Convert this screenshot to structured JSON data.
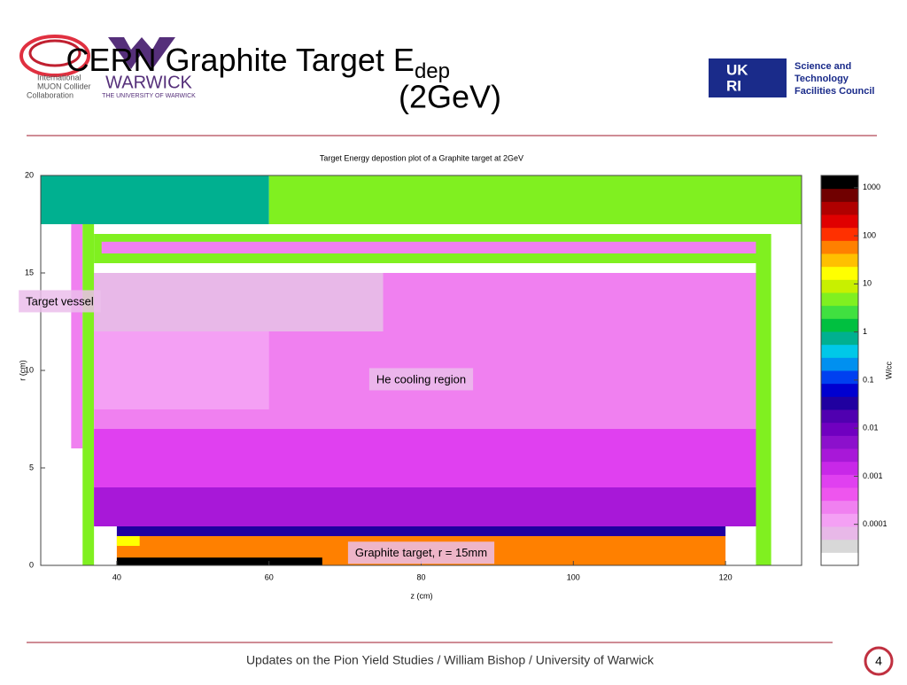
{
  "header": {
    "title_main": "CERN Graphite Target E",
    "title_sub": "dep",
    "title_line2": "(2GeV)",
    "logo_left": [
      "International",
      "MUON Collider",
      "Collaboration"
    ],
    "logo_warwick": "WARWICK",
    "logo_warwick_sub": "THE UNIVERSITY OF WARWICK",
    "logo_ukri": [
      "UK",
      "RI"
    ],
    "logo_stfc": [
      "Science and",
      "Technology",
      "Facilities Council"
    ]
  },
  "footer": {
    "text": "Updates on the Pion Yield Studies / William Bishop / University of Warwick",
    "page": "4"
  },
  "chart_data": {
    "type": "heatmap",
    "title": "Target Energy depostion plot of a Graphite target at 2GeV",
    "xlabel": "z (cm)",
    "ylabel": "r (cm)",
    "xlim": [
      30,
      130
    ],
    "ylim": [
      0,
      20
    ],
    "xticks": [
      40,
      60,
      80,
      100,
      120
    ],
    "yticks": [
      0,
      5,
      10,
      15,
      20
    ],
    "colorbar": {
      "label": "W/cc",
      "log": true,
      "clim": [
        1.4e-05,
        1800
      ],
      "ticks": [
        0.0001,
        0.001,
        0.01,
        0.1,
        1,
        10,
        100,
        1000
      ],
      "colors": [
        "#ffffff",
        "#d8d8d8",
        "#e8b8e8",
        "#f4a0f4",
        "#f080f0",
        "#ee55ee",
        "#e040f0",
        "#c828e8",
        "#a818d8",
        "#8c10cc",
        "#7000c0",
        "#5000b0",
        "#2000a0",
        "#0000d0",
        "#0040f0",
        "#0090f0",
        "#00c8e8",
        "#00b090",
        "#00c040",
        "#40e040",
        "#80f020",
        "#c8f000",
        "#ffff00",
        "#ffc000",
        "#ff8000",
        "#ff3000",
        "#e00000",
        "#b00000",
        "#700000",
        "#000000"
      ]
    },
    "regions": [
      {
        "z": [
          30,
          60
        ],
        "r": [
          17.5,
          20
        ],
        "value": 0.8
      },
      {
        "z": [
          60,
          130
        ],
        "r": [
          17.5,
          20
        ],
        "value": 4
      },
      {
        "z": [
          34,
          35.5
        ],
        "r": [
          6,
          17.5
        ],
        "value": 0.0003
      },
      {
        "z": [
          35.5,
          37
        ],
        "r": [
          0,
          17.5
        ],
        "value": 4
      },
      {
        "z": [
          37,
          125
        ],
        "r": [
          2,
          15
        ],
        "value": 0.0003
      },
      {
        "z": [
          37,
          75
        ],
        "r": [
          12,
          15
        ],
        "value": 5e-05
      },
      {
        "z": [
          37,
          60
        ],
        "r": [
          8,
          12
        ],
        "value": 0.0001
      },
      {
        "z": [
          37,
          125
        ],
        "r": [
          4,
          7
        ],
        "value": 0.001
      },
      {
        "z": [
          37,
          125
        ],
        "r": [
          2,
          4
        ],
        "value": 0.003
      },
      {
        "z": [
          37,
          125
        ],
        "r": [
          15.5,
          17
        ],
        "value": 4
      },
      {
        "z": [
          38,
          125
        ],
        "r": [
          16,
          16.6
        ],
        "value": 0.0002
      },
      {
        "z": [
          124,
          126
        ],
        "r": [
          0,
          17
        ],
        "value": 4
      },
      {
        "z": [
          40,
          120
        ],
        "r": [
          1.5,
          2
        ],
        "value": 0.03
      },
      {
        "z": [
          40,
          120
        ],
        "r": [
          0,
          1.5
        ],
        "value": 60
      },
      {
        "z": [
          40,
          67
        ],
        "r": [
          0,
          0.4
        ],
        "value": 1500
      },
      {
        "z": [
          40,
          43
        ],
        "r": [
          1,
          1.5
        ],
        "value": 20
      }
    ],
    "annotations": [
      {
        "text": "He cooling region",
        "z": 80,
        "r": 9.5
      },
      {
        "text": "Graphite target, r = 15mm",
        "z": 80,
        "r": 0.6
      },
      {
        "text": "Target vessel",
        "z": 32.5,
        "r": 13.5
      }
    ]
  }
}
